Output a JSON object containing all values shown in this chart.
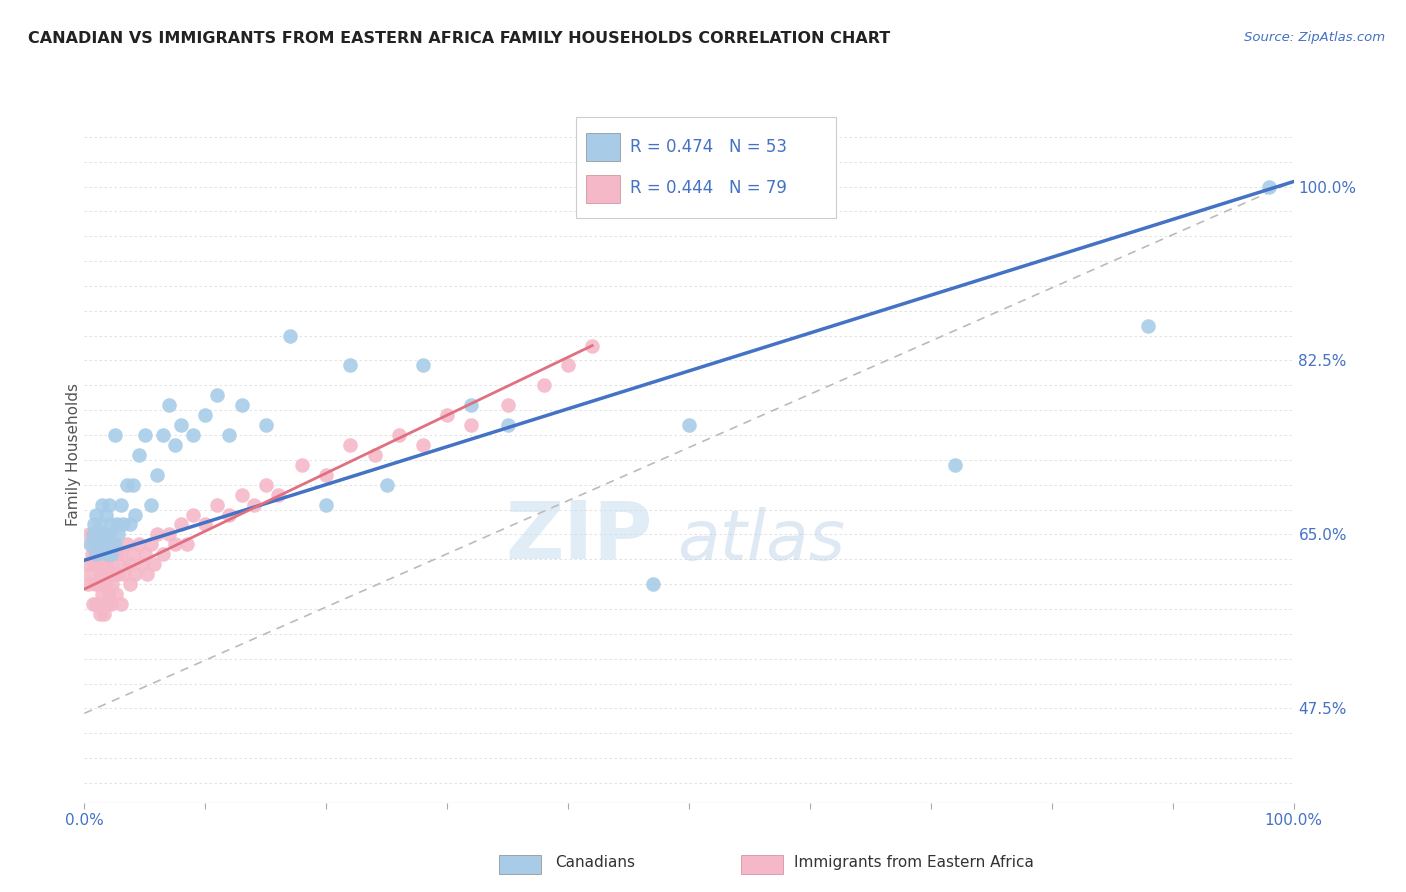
{
  "title": "CANADIAN VS IMMIGRANTS FROM EASTERN AFRICA FAMILY HOUSEHOLDS CORRELATION CHART",
  "source": "Source: ZipAtlas.com",
  "ylabel": "Family Households",
  "xlim": [
    0.0,
    1.0
  ],
  "ylim": [
    0.38,
    1.08
  ],
  "r_canadian": 0.474,
  "n_canadian": 53,
  "r_eastern_africa": 0.444,
  "n_eastern_africa": 79,
  "color_canadian": "#a8cce8",
  "color_eastern_africa": "#f5b8c8",
  "color_trend_canadian": "#4472c4",
  "color_trend_eastern_africa": "#e07080",
  "color_ref_line": "#bbbbbb",
  "legend_label_canadian": "Canadians",
  "legend_label_eastern_africa": "Immigrants from Eastern Africa",
  "ytick_labels": [
    0.475,
    0.65,
    0.825,
    1.0
  ],
  "ytick_label_strs": [
    "47.5%",
    "65.0%",
    "82.5%",
    "100.0%"
  ],
  "canadian_x": [
    0.005,
    0.007,
    0.008,
    0.01,
    0.01,
    0.012,
    0.013,
    0.015,
    0.015,
    0.016,
    0.018,
    0.018,
    0.019,
    0.02,
    0.02,
    0.022,
    0.022,
    0.025,
    0.025,
    0.027,
    0.028,
    0.03,
    0.032,
    0.035,
    0.038,
    0.04,
    0.042,
    0.045,
    0.05,
    0.055,
    0.06,
    0.065,
    0.07,
    0.075,
    0.08,
    0.09,
    0.1,
    0.11,
    0.12,
    0.13,
    0.15,
    0.17,
    0.2,
    0.22,
    0.25,
    0.28,
    0.32,
    0.35,
    0.47,
    0.5,
    0.72,
    0.88,
    0.98
  ],
  "canadian_y": [
    0.64,
    0.65,
    0.66,
    0.63,
    0.67,
    0.64,
    0.66,
    0.65,
    0.68,
    0.65,
    0.64,
    0.67,
    0.63,
    0.65,
    0.68,
    0.63,
    0.66,
    0.75,
    0.64,
    0.66,
    0.65,
    0.68,
    0.66,
    0.7,
    0.66,
    0.7,
    0.67,
    0.73,
    0.75,
    0.68,
    0.71,
    0.75,
    0.78,
    0.74,
    0.76,
    0.75,
    0.77,
    0.79,
    0.75,
    0.78,
    0.76,
    0.85,
    0.68,
    0.82,
    0.7,
    0.82,
    0.78,
    0.76,
    0.6,
    0.76,
    0.72,
    0.86,
    1.0
  ],
  "eastern_africa_x": [
    0.002,
    0.003,
    0.004,
    0.005,
    0.006,
    0.007,
    0.007,
    0.008,
    0.008,
    0.009,
    0.009,
    0.01,
    0.01,
    0.01,
    0.012,
    0.012,
    0.013,
    0.014,
    0.014,
    0.015,
    0.015,
    0.016,
    0.016,
    0.017,
    0.018,
    0.019,
    0.019,
    0.02,
    0.02,
    0.021,
    0.022,
    0.022,
    0.023,
    0.024,
    0.025,
    0.026,
    0.027,
    0.028,
    0.03,
    0.03,
    0.032,
    0.033,
    0.035,
    0.037,
    0.038,
    0.04,
    0.042,
    0.045,
    0.048,
    0.05,
    0.052,
    0.055,
    0.058,
    0.06,
    0.065,
    0.07,
    0.075,
    0.08,
    0.085,
    0.09,
    0.1,
    0.11,
    0.12,
    0.13,
    0.14,
    0.15,
    0.16,
    0.18,
    0.2,
    0.22,
    0.24,
    0.26,
    0.28,
    0.3,
    0.32,
    0.35,
    0.38,
    0.4,
    0.42
  ],
  "eastern_africa_y": [
    0.62,
    0.6,
    0.65,
    0.61,
    0.63,
    0.58,
    0.64,
    0.62,
    0.65,
    0.6,
    0.63,
    0.58,
    0.62,
    0.65,
    0.6,
    0.63,
    0.57,
    0.61,
    0.64,
    0.59,
    0.63,
    0.57,
    0.61,
    0.6,
    0.63,
    0.58,
    0.62,
    0.59,
    0.63,
    0.61,
    0.58,
    0.62,
    0.6,
    0.64,
    0.61,
    0.59,
    0.63,
    0.61,
    0.58,
    0.63,
    0.62,
    0.61,
    0.64,
    0.62,
    0.6,
    0.63,
    0.61,
    0.64,
    0.62,
    0.63,
    0.61,
    0.64,
    0.62,
    0.65,
    0.63,
    0.65,
    0.64,
    0.66,
    0.64,
    0.67,
    0.66,
    0.68,
    0.67,
    0.69,
    0.68,
    0.7,
    0.69,
    0.72,
    0.71,
    0.74,
    0.73,
    0.75,
    0.74,
    0.77,
    0.76,
    0.78,
    0.8,
    0.82,
    0.84
  ],
  "canadian_trend_x0": 0.0,
  "canadian_trend_y0": 0.624,
  "canadian_trend_x1": 1.0,
  "canadian_trend_y1": 1.005,
  "ea_trend_x0": 0.0,
  "ea_trend_y0": 0.595,
  "ea_trend_x1": 0.42,
  "ea_trend_y1": 0.84,
  "ref_line_x0": 0.0,
  "ref_line_y0": 0.47,
  "ref_line_x1": 1.0,
  "ref_line_y1": 1.005
}
